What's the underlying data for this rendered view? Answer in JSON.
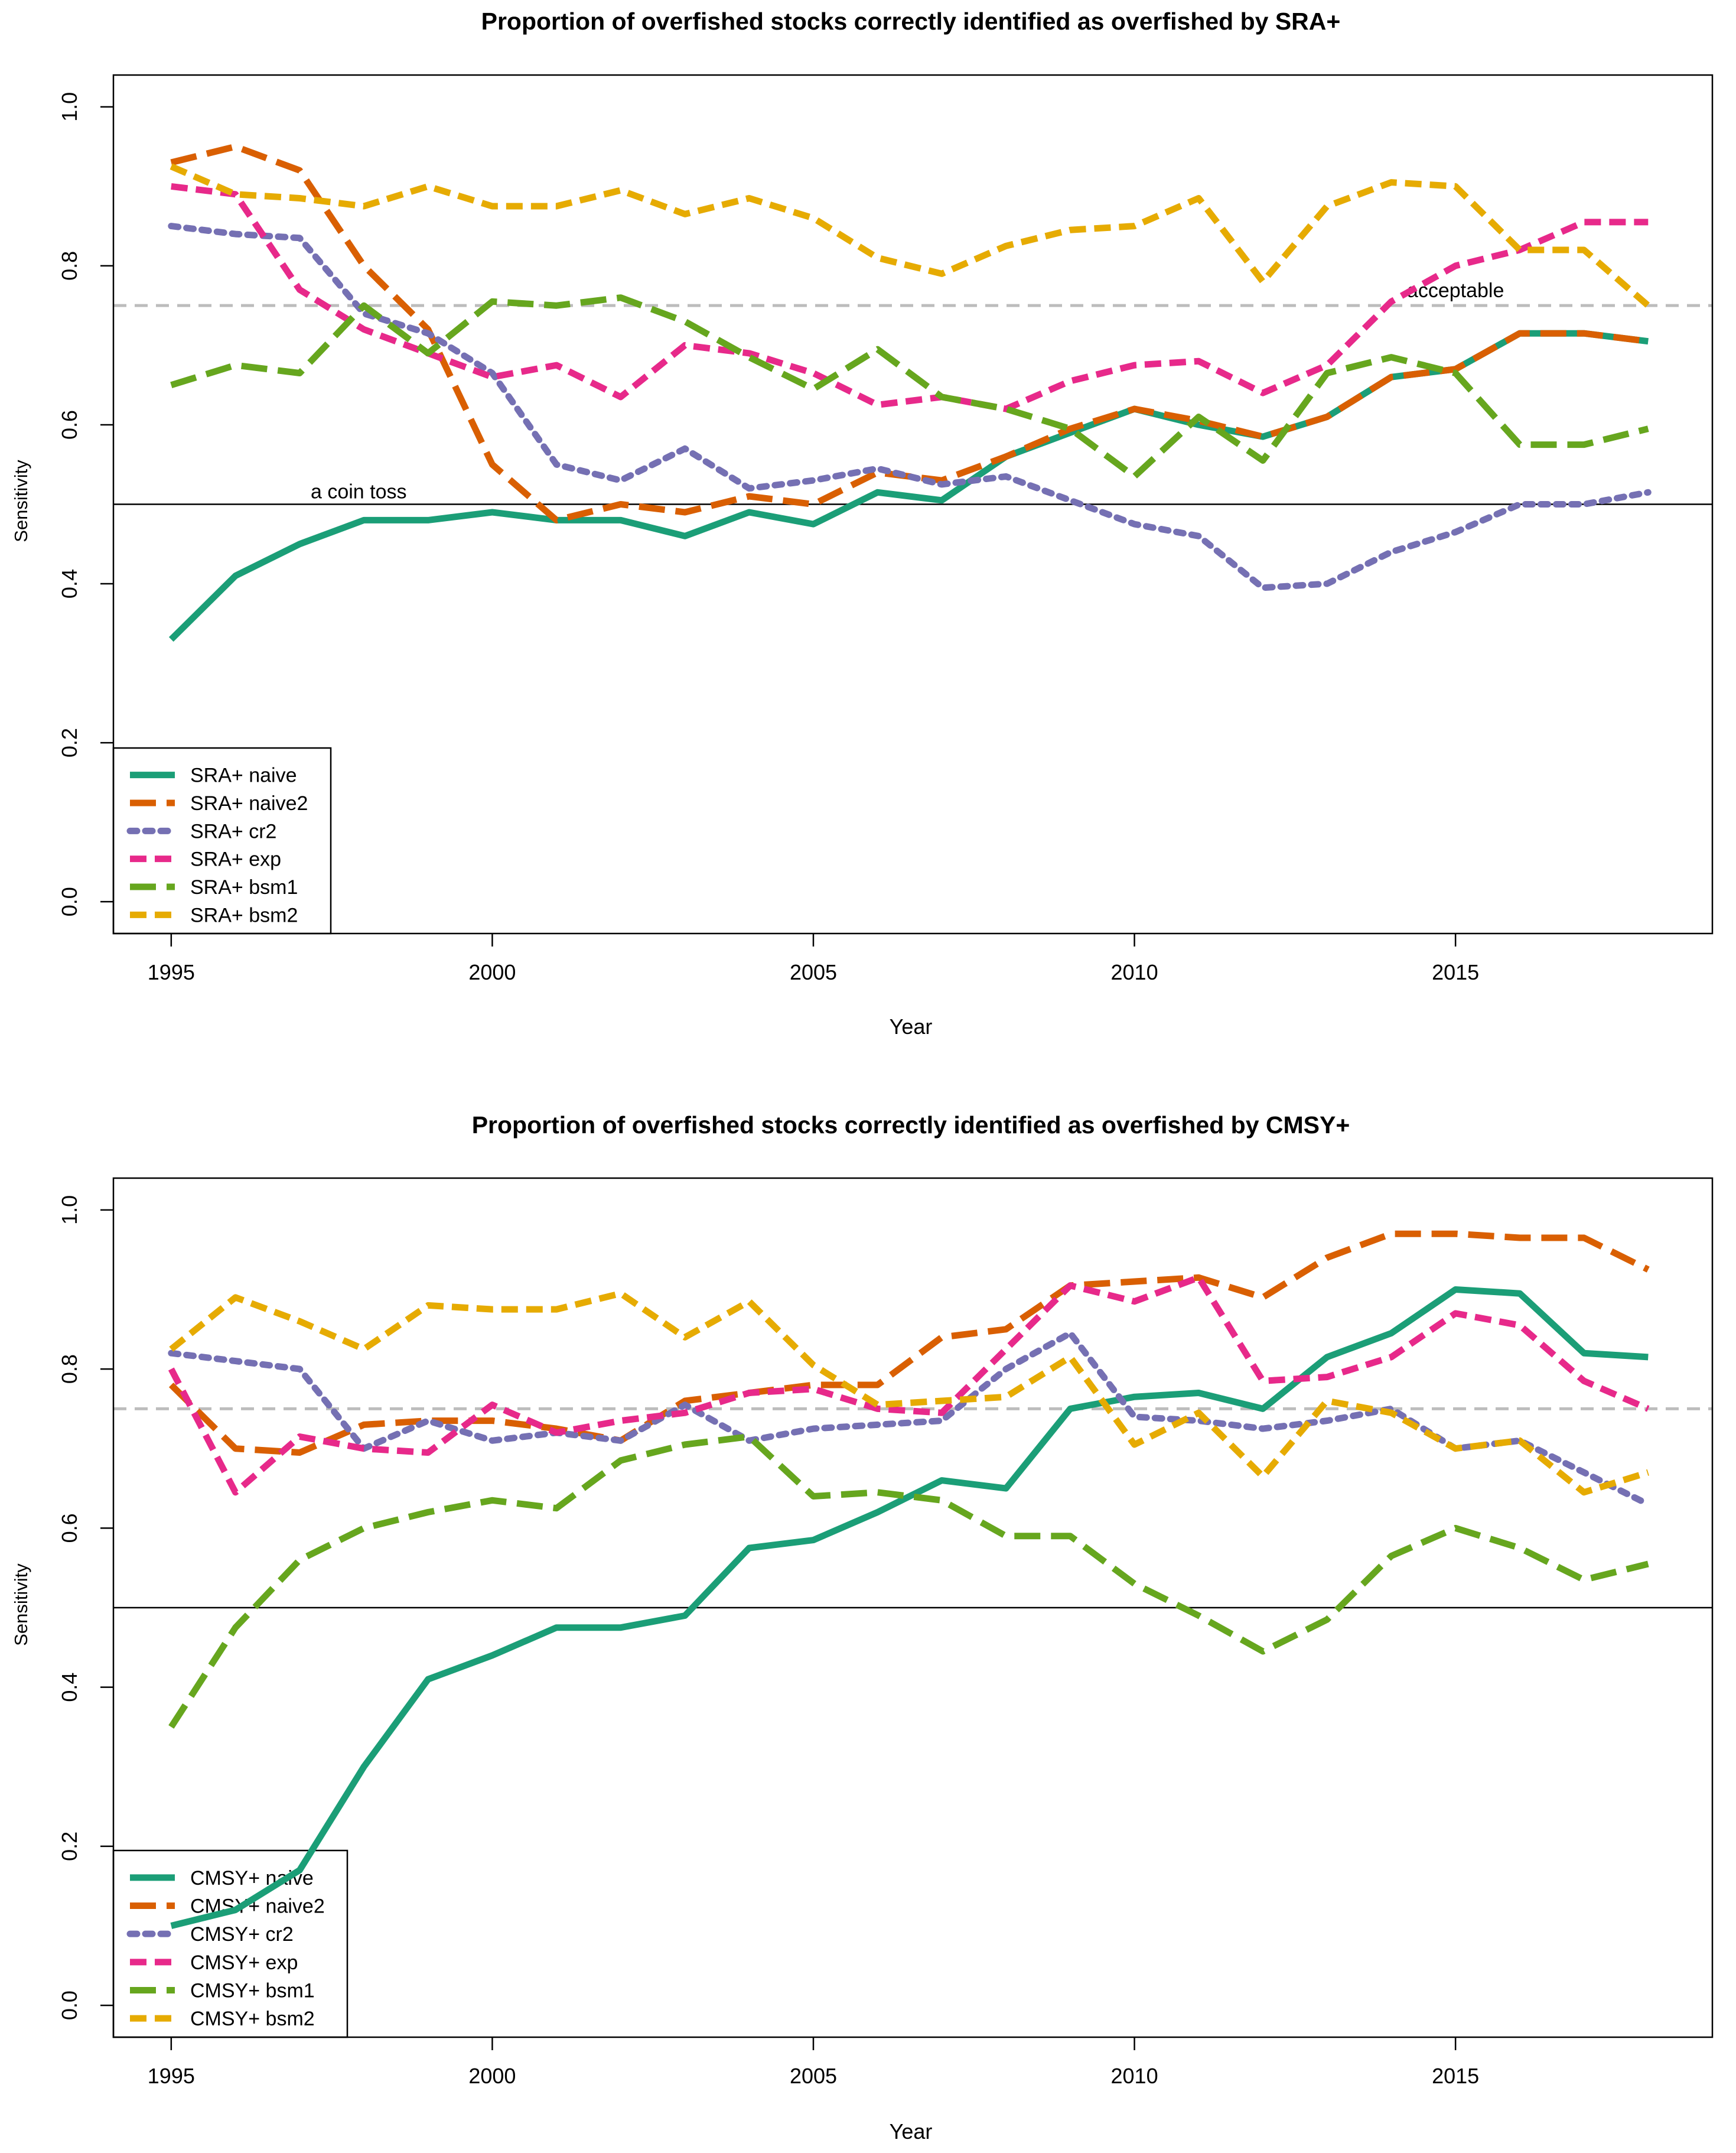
{
  "charts": [
    {
      "chart_data": {
        "type": "line",
        "title": "Proportion of overfished stocks correctly identified as overfished by SRA+",
        "xlabel": "Year",
        "ylabel": "Sensitivity",
        "xlim": [
          1994.1,
          2019.0
        ],
        "ylim": [
          -0.04,
          1.04
        ],
        "xticks": [
          1995,
          2000,
          2005,
          2010,
          2015
        ],
        "yticks": [
          0.0,
          0.2,
          0.4,
          0.6,
          0.8,
          1.0
        ],
        "x": [
          1995,
          1996,
          1997,
          1998,
          1999,
          2000,
          2001,
          2002,
          2003,
          2004,
          2005,
          2006,
          2007,
          2008,
          2009,
          2010,
          2011,
          2012,
          2013,
          2014,
          2015,
          2016,
          2017,
          2018
        ],
        "reference_lines": [
          {
            "y": 0.5,
            "style": "solid",
            "label": "a coin toss",
            "label_x": 1998.0
          },
          {
            "y": 0.75,
            "style": "dashed",
            "label": "acceptable",
            "label_x": 2015.0
          }
        ],
        "legend_position": "bottom-left",
        "series": [
          {
            "name": "SRA+ naive",
            "color": "#1b9e77",
            "dash": "solid",
            "values": [
              0.33,
              0.41,
              0.45,
              0.48,
              0.48,
              0.49,
              0.48,
              0.48,
              0.46,
              0.49,
              0.475,
              0.515,
              0.505,
              0.56,
              0.59,
              0.62,
              0.6,
              0.585,
              0.61,
              0.66,
              0.67,
              0.715,
              0.715,
              0.705
            ]
          },
          {
            "name": "SRA+ naive2",
            "color": "#d95f02",
            "dash": "long",
            "values": [
              0.93,
              0.95,
              0.92,
              0.8,
              0.72,
              0.55,
              0.48,
              0.5,
              0.49,
              0.51,
              0.5,
              0.54,
              0.53,
              0.56,
              0.595,
              0.62,
              0.605,
              0.585,
              0.61,
              0.66,
              0.67,
              0.715,
              0.715,
              0.705
            ]
          },
          {
            "name": "SRA+ cr2",
            "color": "#7570b3",
            "dash": "dotted",
            "values": [
              0.85,
              0.84,
              0.835,
              0.74,
              0.715,
              0.665,
              0.55,
              0.53,
              0.57,
              0.52,
              0.53,
              0.545,
              0.525,
              0.535,
              0.505,
              0.475,
              0.46,
              0.395,
              0.4,
              0.44,
              0.465,
              0.5,
              0.5,
              0.515
            ]
          },
          {
            "name": "SRA+ exp",
            "color": "#e7298a",
            "dash": "medium",
            "values": [
              0.9,
              0.89,
              0.77,
              0.72,
              0.69,
              0.66,
              0.675,
              0.635,
              0.7,
              0.69,
              0.665,
              0.625,
              0.635,
              0.62,
              0.655,
              0.675,
              0.68,
              0.64,
              0.675,
              0.755,
              0.8,
              0.82,
              0.855,
              0.855
            ]
          },
          {
            "name": "SRA+ bsm1",
            "color": "#66a61e",
            "dash": "long",
            "values": [
              0.65,
              0.675,
              0.665,
              0.75,
              0.69,
              0.755,
              0.75,
              0.76,
              0.73,
              0.685,
              0.645,
              0.695,
              0.635,
              0.62,
              0.595,
              0.535,
              0.61,
              0.555,
              0.665,
              0.685,
              0.665,
              0.575,
              0.575,
              0.595
            ]
          },
          {
            "name": "SRA+ bsm2",
            "color": "#e6ab02",
            "dash": "medium",
            "values": [
              0.925,
              0.89,
              0.885,
              0.875,
              0.9,
              0.875,
              0.875,
              0.895,
              0.865,
              0.885,
              0.86,
              0.81,
              0.79,
              0.825,
              0.845,
              0.85,
              0.885,
              0.78,
              0.875,
              0.905,
              0.9,
              0.82,
              0.82,
              0.75
            ]
          }
        ]
      }
    },
    {
      "chart_data": {
        "type": "line",
        "title": "Proportion of overfished stocks correctly identified as overfished by CMSY+",
        "xlabel": "Year",
        "ylabel": "Sensitivity",
        "xlim": [
          1994.1,
          2019.0
        ],
        "ylim": [
          -0.04,
          1.04
        ],
        "xticks": [
          1995,
          2000,
          2005,
          2010,
          2015
        ],
        "yticks": [
          0.0,
          0.2,
          0.4,
          0.6,
          0.8,
          1.0
        ],
        "x": [
          1995,
          1996,
          1997,
          1998,
          1999,
          2000,
          2001,
          2002,
          2003,
          2004,
          2005,
          2006,
          2007,
          2008,
          2009,
          2010,
          2011,
          2012,
          2013,
          2014,
          2015,
          2016,
          2017,
          2018
        ],
        "reference_lines": [
          {
            "y": 0.5,
            "style": "solid"
          },
          {
            "y": 0.75,
            "style": "dashed"
          }
        ],
        "legend_position": "bottom-left",
        "series": [
          {
            "name": "CMSY+ naive",
            "color": "#1b9e77",
            "dash": "solid",
            "values": [
              0.1,
              0.12,
              0.17,
              0.3,
              0.41,
              0.44,
              0.475,
              0.475,
              0.49,
              0.575,
              0.585,
              0.62,
              0.66,
              0.65,
              0.75,
              0.765,
              0.77,
              0.75,
              0.815,
              0.845,
              0.9,
              0.895,
              0.82,
              0.815
            ]
          },
          {
            "name": "CMSY+ naive2",
            "color": "#d95f02",
            "dash": "long",
            "values": [
              0.78,
              0.7,
              0.695,
              0.73,
              0.735,
              0.735,
              0.725,
              0.71,
              0.76,
              0.77,
              0.78,
              0.78,
              0.84,
              0.85,
              0.905,
              0.91,
              0.915,
              0.89,
              0.94,
              0.97,
              0.97,
              0.965,
              0.965,
              0.925
            ]
          },
          {
            "name": "CMSY+ cr2",
            "color": "#7570b3",
            "dash": "dotted",
            "values": [
              0.82,
              0.81,
              0.8,
              0.7,
              0.735,
              0.71,
              0.72,
              0.71,
              0.755,
              0.71,
              0.725,
              0.73,
              0.735,
              0.8,
              0.845,
              0.74,
              0.735,
              0.725,
              0.735,
              0.75,
              0.7,
              0.71,
              0.67,
              0.63
            ]
          },
          {
            "name": "CMSY+ exp",
            "color": "#e7298a",
            "dash": "medium",
            "values": [
              0.8,
              0.645,
              0.715,
              0.7,
              0.695,
              0.755,
              0.72,
              0.735,
              0.745,
              0.77,
              0.775,
              0.75,
              0.745,
              0.825,
              0.905,
              0.885,
              0.915,
              0.785,
              0.79,
              0.815,
              0.87,
              0.855,
              0.785,
              0.75
            ]
          },
          {
            "name": "CMSY+ bsm1",
            "color": "#66a61e",
            "dash": "long",
            "values": [
              0.35,
              0.475,
              0.56,
              0.6,
              0.62,
              0.635,
              0.625,
              0.685,
              0.705,
              0.715,
              0.64,
              0.645,
              0.635,
              0.59,
              0.59,
              0.53,
              0.49,
              0.445,
              0.485,
              0.565,
              0.6,
              0.575,
              0.535,
              0.555
            ]
          },
          {
            "name": "CMSY+ bsm2",
            "color": "#e6ab02",
            "dash": "medium",
            "values": [
              0.825,
              0.89,
              0.86,
              0.825,
              0.88,
              0.875,
              0.875,
              0.895,
              0.84,
              0.885,
              0.805,
              0.755,
              0.76,
              0.765,
              0.815,
              0.705,
              0.745,
              0.665,
              0.76,
              0.745,
              0.7,
              0.71,
              0.645,
              0.67
            ]
          }
        ]
      }
    }
  ]
}
